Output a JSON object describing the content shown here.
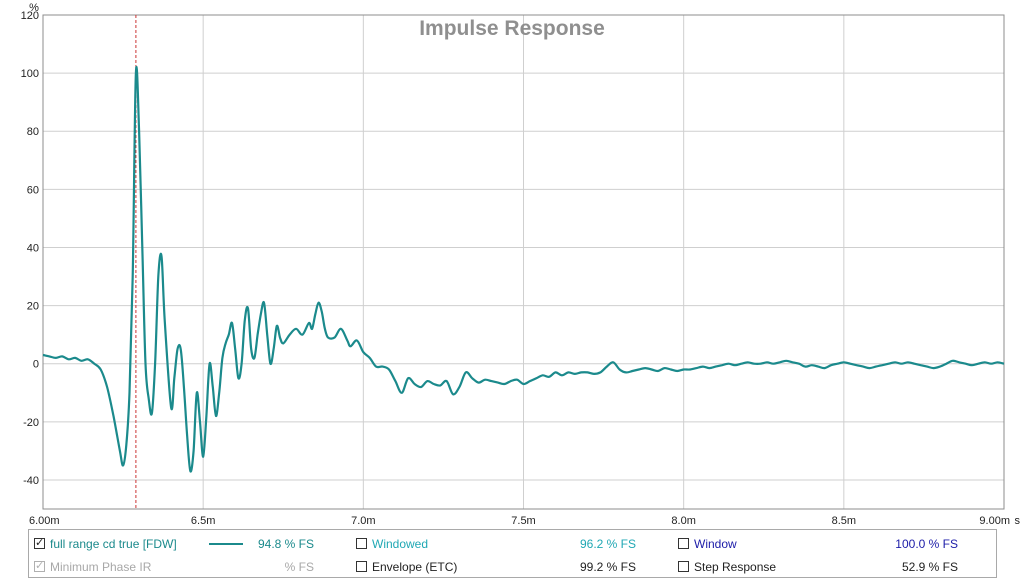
{
  "chart_data": {
    "type": "line",
    "title": "Impulse Response",
    "ylabel": "%",
    "xunit": "s",
    "xlim": [
      0.006,
      0.009
    ],
    "ylim": [
      -50,
      120
    ],
    "x_ticks": [
      {
        "v": 0.006,
        "label": "6.00m"
      },
      {
        "v": 0.0065,
        "label": "6.5m"
      },
      {
        "v": 0.007,
        "label": "7.0m"
      },
      {
        "v": 0.0075,
        "label": "7.5m"
      },
      {
        "v": 0.008,
        "label": "8.0m"
      },
      {
        "v": 0.0085,
        "label": "8.5m"
      },
      {
        "v": 0.009,
        "label": "9.00m"
      }
    ],
    "y_ticks": [
      {
        "v": 120,
        "label": "120"
      },
      {
        "v": 100,
        "label": "100"
      },
      {
        "v": 80,
        "label": "80"
      },
      {
        "v": 60,
        "label": "60"
      },
      {
        "v": 40,
        "label": "40"
      },
      {
        "v": 20,
        "label": "20"
      },
      {
        "v": 0,
        "label": "0"
      },
      {
        "v": -20,
        "label": "-20"
      },
      {
        "v": -40,
        "label": "-40"
      }
    ],
    "marker_x": 0.00629,
    "grid": true,
    "series": [
      {
        "name": "full range cd true [FDW]",
        "color": "#1b8a8c",
        "points": [
          [
            0.006,
            3
          ],
          [
            0.00602,
            2.5
          ],
          [
            0.00604,
            2
          ],
          [
            0.00606,
            2.5
          ],
          [
            0.00608,
            1.5
          ],
          [
            0.0061,
            2
          ],
          [
            0.00612,
            1
          ],
          [
            0.00614,
            1.5
          ],
          [
            0.00616,
            0
          ],
          [
            0.00618,
            -2
          ],
          [
            0.0062,
            -8
          ],
          [
            0.00622,
            -18
          ],
          [
            0.00624,
            -30
          ],
          [
            0.00625,
            -35
          ],
          [
            0.00626,
            -28
          ],
          [
            0.00627,
            -10
          ],
          [
            0.00628,
            30
          ],
          [
            0.00629,
            100
          ],
          [
            0.0063,
            80
          ],
          [
            0.00631,
            40
          ],
          [
            0.00632,
            0
          ],
          [
            0.00633,
            -12
          ],
          [
            0.00634,
            -17
          ],
          [
            0.00635,
            0
          ],
          [
            0.00636,
            30
          ],
          [
            0.00637,
            37
          ],
          [
            0.00638,
            15
          ],
          [
            0.0064,
            -15
          ],
          [
            0.00641,
            -5
          ],
          [
            0.00642,
            5
          ],
          [
            0.00643,
            5
          ],
          [
            0.00644,
            -8
          ],
          [
            0.00645,
            -25
          ],
          [
            0.00646,
            -37
          ],
          [
            0.00647,
            -30
          ],
          [
            0.00648,
            -10
          ],
          [
            0.00649,
            -20
          ],
          [
            0.0065,
            -32
          ],
          [
            0.00651,
            -18
          ],
          [
            0.00652,
            0
          ],
          [
            0.00653,
            -8
          ],
          [
            0.00654,
            -18
          ],
          [
            0.00655,
            -10
          ],
          [
            0.00656,
            2
          ],
          [
            0.00657,
            7
          ],
          [
            0.00658,
            10
          ],
          [
            0.00659,
            14
          ],
          [
            0.0066,
            5
          ],
          [
            0.00661,
            -5
          ],
          [
            0.00662,
            0
          ],
          [
            0.00663,
            15
          ],
          [
            0.00664,
            19
          ],
          [
            0.00665,
            5
          ],
          [
            0.00666,
            2
          ],
          [
            0.00667,
            10
          ],
          [
            0.00668,
            17
          ],
          [
            0.00669,
            21
          ],
          [
            0.0067,
            10
          ],
          [
            0.00671,
            0
          ],
          [
            0.00672,
            5
          ],
          [
            0.00673,
            13
          ],
          [
            0.00674,
            9
          ],
          [
            0.00675,
            7
          ],
          [
            0.00677,
            10
          ],
          [
            0.00679,
            12
          ],
          [
            0.00681,
            10
          ],
          [
            0.00683,
            14
          ],
          [
            0.00684,
            12
          ],
          [
            0.00685,
            17
          ],
          [
            0.00686,
            21
          ],
          [
            0.00687,
            18
          ],
          [
            0.00688,
            12
          ],
          [
            0.00689,
            9
          ],
          [
            0.00691,
            9
          ],
          [
            0.00693,
            12
          ],
          [
            0.00695,
            8
          ],
          [
            0.00696,
            6
          ],
          [
            0.00698,
            8
          ],
          [
            0.007,
            4
          ],
          [
            0.00702,
            2
          ],
          [
            0.00704,
            -1
          ],
          [
            0.00706,
            -1
          ],
          [
            0.00708,
            -2
          ],
          [
            0.0071,
            -6
          ],
          [
            0.00712,
            -10
          ],
          [
            0.00714,
            -5
          ],
          [
            0.00716,
            -7
          ],
          [
            0.00718,
            -8
          ],
          [
            0.0072,
            -6
          ],
          [
            0.00722,
            -7
          ],
          [
            0.00724,
            -7.5
          ],
          [
            0.00726,
            -6
          ],
          [
            0.00728,
            -10.5
          ],
          [
            0.0073,
            -8
          ],
          [
            0.00732,
            -3
          ],
          [
            0.00734,
            -5
          ],
          [
            0.00736,
            -6.5
          ],
          [
            0.00738,
            -5.5
          ],
          [
            0.0074,
            -6
          ],
          [
            0.00742,
            -6.5
          ],
          [
            0.00744,
            -7
          ],
          [
            0.00746,
            -6
          ],
          [
            0.00748,
            -5.5
          ],
          [
            0.0075,
            -7
          ],
          [
            0.00752,
            -6
          ],
          [
            0.00754,
            -5
          ],
          [
            0.00756,
            -4
          ],
          [
            0.00758,
            -4.5
          ],
          [
            0.0076,
            -3
          ],
          [
            0.00762,
            -4
          ],
          [
            0.00764,
            -3
          ],
          [
            0.00766,
            -3.5
          ],
          [
            0.00768,
            -3
          ],
          [
            0.0077,
            -3
          ],
          [
            0.00772,
            -3.5
          ],
          [
            0.00774,
            -3
          ],
          [
            0.00776,
            -1
          ],
          [
            0.00778,
            0.5
          ],
          [
            0.0078,
            -2
          ],
          [
            0.00782,
            -3
          ],
          [
            0.00784,
            -2.5
          ],
          [
            0.00786,
            -2
          ],
          [
            0.00788,
            -1.5
          ],
          [
            0.0079,
            -2
          ],
          [
            0.00792,
            -2.5
          ],
          [
            0.00794,
            -1.5
          ],
          [
            0.00796,
            -2
          ],
          [
            0.00798,
            -2.5
          ],
          [
            0.008,
            -2
          ],
          [
            0.00802,
            -2
          ],
          [
            0.00804,
            -1.5
          ],
          [
            0.00806,
            -1
          ],
          [
            0.00808,
            -1.5
          ],
          [
            0.0081,
            -1
          ],
          [
            0.00812,
            -0.5
          ],
          [
            0.00814,
            0
          ],
          [
            0.00816,
            -0.5
          ],
          [
            0.00818,
            0
          ],
          [
            0.0082,
            0.5
          ],
          [
            0.00822,
            0
          ],
          [
            0.00824,
            0
          ],
          [
            0.00826,
            0.5
          ],
          [
            0.00828,
            0
          ],
          [
            0.0083,
            0.5
          ],
          [
            0.00832,
            1
          ],
          [
            0.00834,
            0.5
          ],
          [
            0.00836,
            0
          ],
          [
            0.00838,
            -1
          ],
          [
            0.0084,
            -0.5
          ],
          [
            0.00842,
            -1
          ],
          [
            0.00844,
            -1.5
          ],
          [
            0.00846,
            -0.5
          ],
          [
            0.00848,
            0
          ],
          [
            0.0085,
            0.5
          ],
          [
            0.00852,
            0
          ],
          [
            0.00854,
            -0.5
          ],
          [
            0.00856,
            -1
          ],
          [
            0.00858,
            -1.5
          ],
          [
            0.0086,
            -1
          ],
          [
            0.00862,
            -0.5
          ],
          [
            0.00864,
            0
          ],
          [
            0.00866,
            0.5
          ],
          [
            0.00868,
            0
          ],
          [
            0.0087,
            0.5
          ],
          [
            0.00872,
            0
          ],
          [
            0.00874,
            -0.5
          ],
          [
            0.00876,
            -1
          ],
          [
            0.00878,
            -1.5
          ],
          [
            0.0088,
            -1
          ],
          [
            0.00882,
            0
          ],
          [
            0.00884,
            1
          ],
          [
            0.00886,
            0.5
          ],
          [
            0.00888,
            0
          ],
          [
            0.0089,
            -0.5
          ],
          [
            0.00892,
            0
          ],
          [
            0.00894,
            0.5
          ],
          [
            0.00896,
            0
          ],
          [
            0.00898,
            0.5
          ],
          [
            0.009,
            0
          ]
        ]
      }
    ]
  },
  "legend": {
    "items": [
      {
        "label": "full range cd true [FDW]",
        "checked": true,
        "disabled": false,
        "value": "94.8 % FS",
        "color": "#1b8a8c",
        "show_swatch": true
      },
      {
        "label": "Windowed",
        "checked": false,
        "disabled": false,
        "value": "96.2 % FS",
        "color": "#20a8b4",
        "show_swatch": false
      },
      {
        "label": "Window",
        "checked": false,
        "disabled": false,
        "value": "100.0 % FS",
        "color": "#1c1ca8",
        "show_swatch": false
      },
      {
        "label": "Minimum Phase IR",
        "checked": true,
        "disabled": true,
        "value": "% FS",
        "color": "#a8a8a8",
        "show_swatch": false
      },
      {
        "label": "Envelope (ETC)",
        "checked": false,
        "disabled": false,
        "value": "99.2 % FS",
        "color": "#222222",
        "show_swatch": false
      },
      {
        "label": "Step Response",
        "checked": false,
        "disabled": false,
        "value": "52.9 % FS",
        "color": "#222222",
        "show_swatch": false
      }
    ]
  }
}
